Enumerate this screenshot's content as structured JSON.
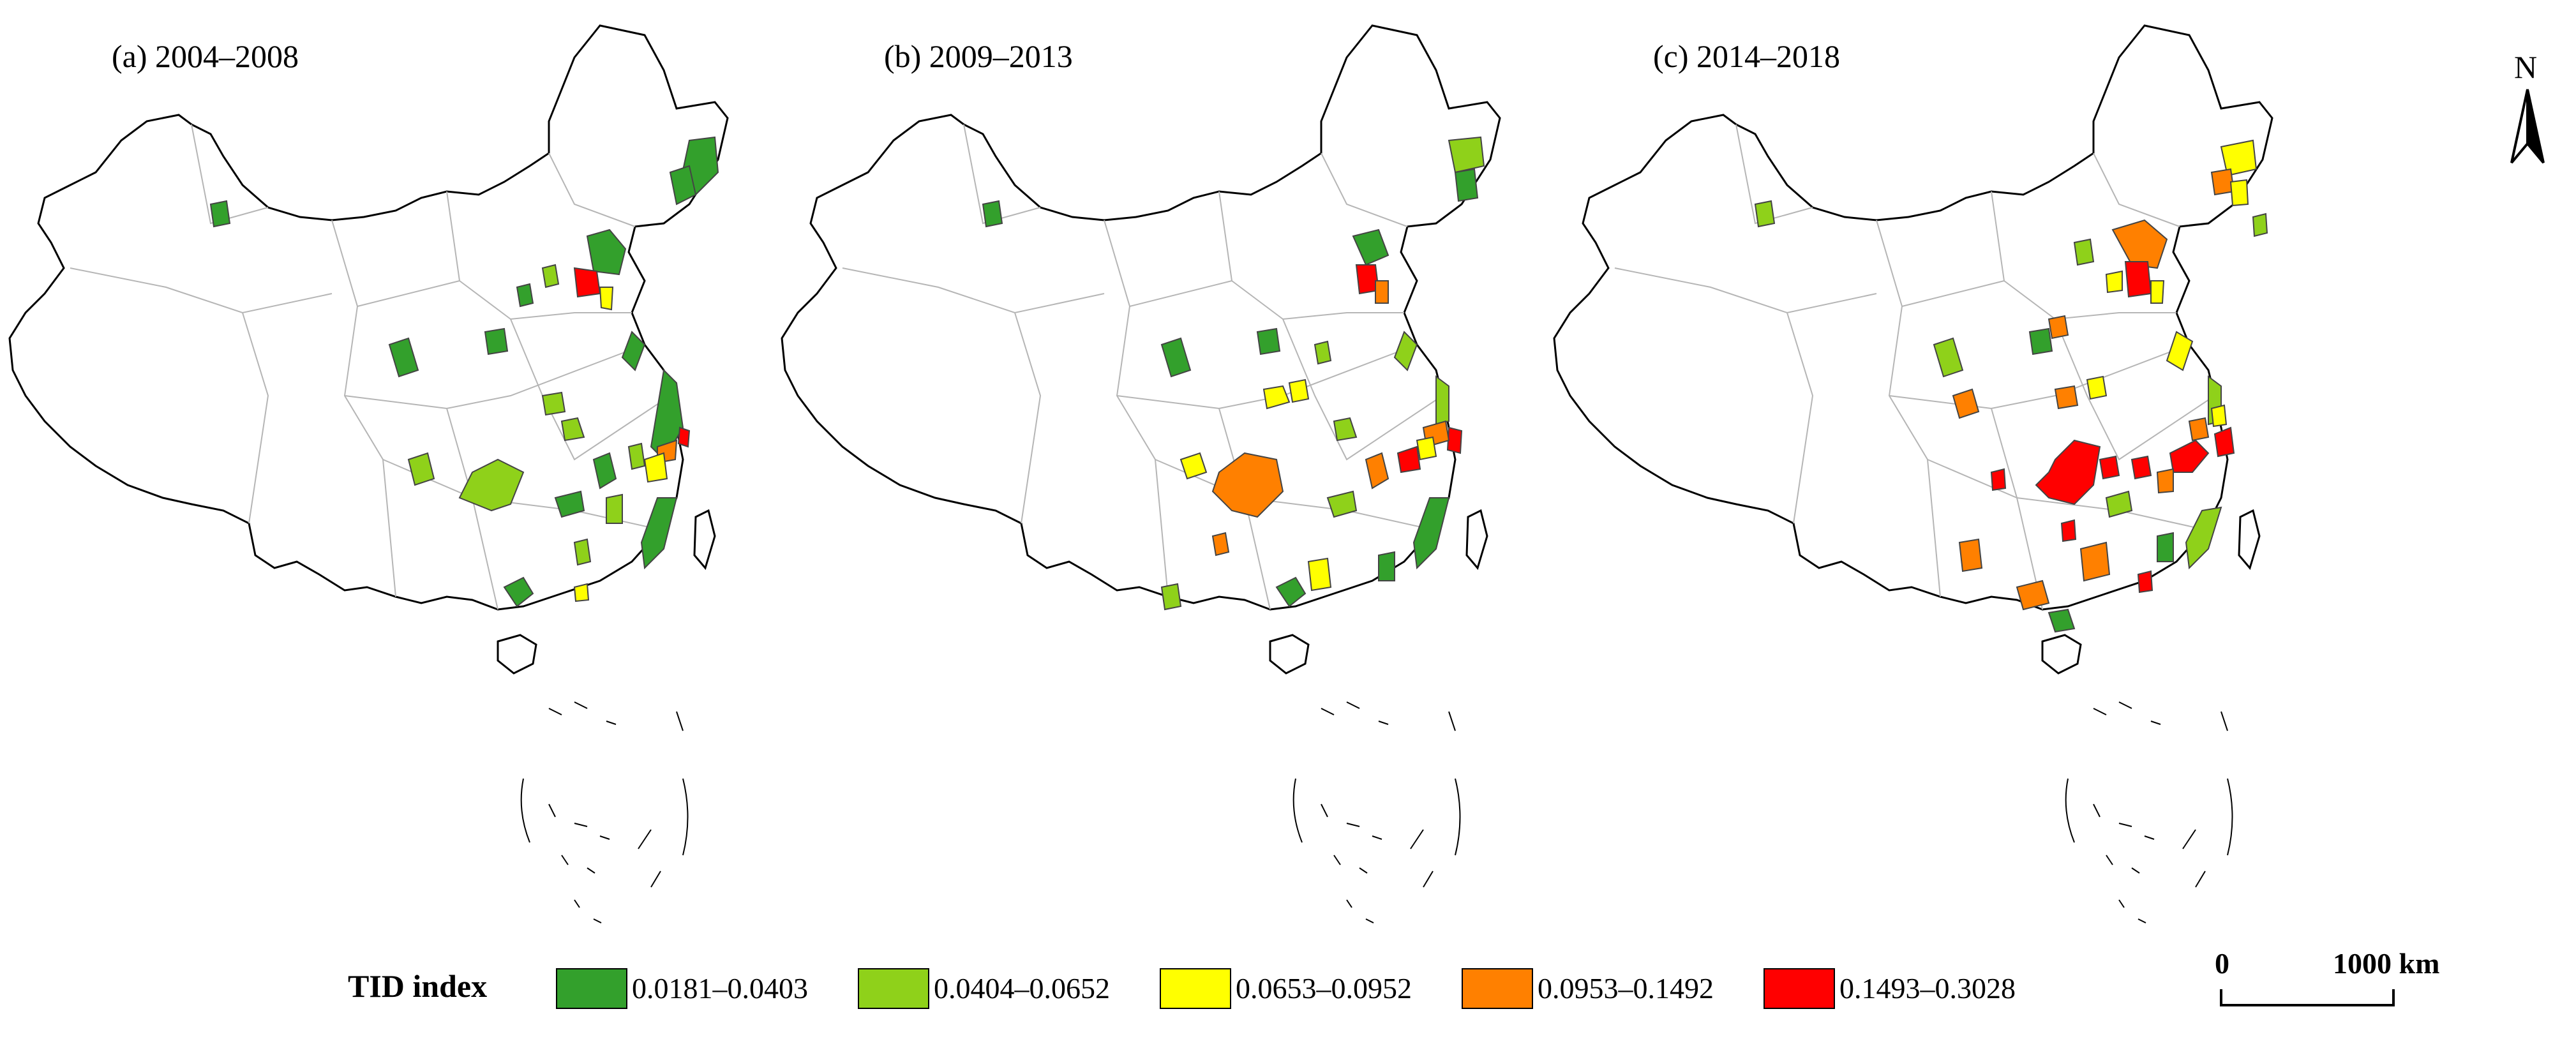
{
  "panels": [
    {
      "id": "a",
      "title": "(a) 2004–2008"
    },
    {
      "id": "b",
      "title": "(b) 2009–2013"
    },
    {
      "id": "c",
      "title": "(c) 2014–2018"
    }
  ],
  "legend": {
    "title": "TID index",
    "classes": [
      {
        "label": "0.0181–0.0403",
        "color": "#33a02c"
      },
      {
        "label": "0.0404–0.0652",
        "color": "#8fd11a"
      },
      {
        "label": "0.0653–0.0952",
        "color": "#ffff00"
      },
      {
        "label": "0.0953–0.1492",
        "color": "#ff8000"
      },
      {
        "label": "0.1493–0.3028",
        "color": "#ff0000"
      }
    ]
  },
  "scale_bar": {
    "start_label": "0",
    "end_label": "1000 km"
  },
  "north_arrow": {
    "label": "N"
  },
  "colors": {
    "boundary": "#000000",
    "internal_boundary": "#b0b0b0",
    "background": "#ffffff"
  }
}
